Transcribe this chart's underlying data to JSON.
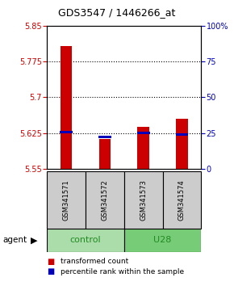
{
  "title": "GDS3547 / 1446266_at",
  "samples": [
    "GSM341571",
    "GSM341572",
    "GSM341573",
    "GSM341574"
  ],
  "red_values": [
    5.808,
    5.612,
    5.638,
    5.655
  ],
  "blue_values": [
    5.627,
    5.617,
    5.625,
    5.622
  ],
  "y_min": 5.55,
  "y_max": 5.85,
  "y_ticks_left": [
    5.55,
    5.625,
    5.7,
    5.775,
    5.85
  ],
  "y_ticks_right": [
    0,
    25,
    50,
    75,
    100
  ],
  "red_color": "#cc0000",
  "blue_color": "#0000bb",
  "control_color": "#aaddaa",
  "u28_color": "#77cc77",
  "gray_color": "#cccccc",
  "legend_items": [
    "transformed count",
    "percentile rank within the sample"
  ],
  "left_label_color": "#cc0000",
  "right_label_color": "#0000bb"
}
